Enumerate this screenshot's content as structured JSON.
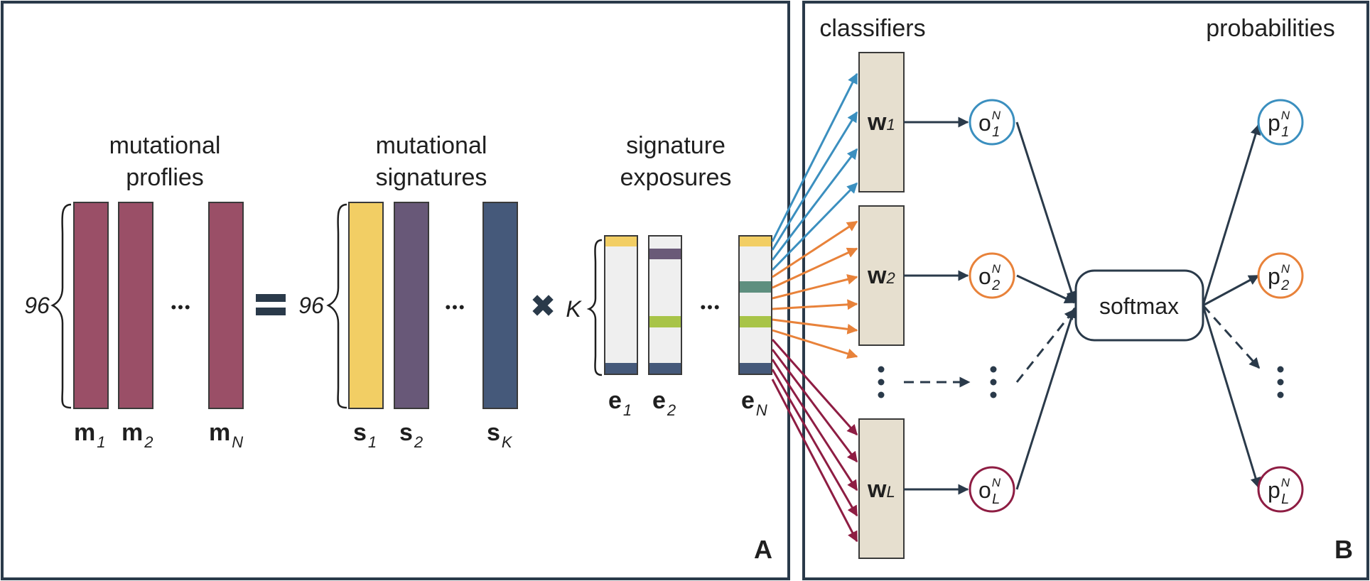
{
  "colors": {
    "frame": "#2a3a4a",
    "profile": "#9a4f67",
    "sig1": "#f2ce64",
    "sig2": "#685878",
    "sigK": "#45597a",
    "exposure_bg": "#efefef",
    "exposure_top": "#f2ce64",
    "exposure_bottom": "#45597a",
    "exposure_purple": "#6a5a78",
    "exposure_green": "#a8c448",
    "exposure_teal": "#5e8f7f",
    "classifier_fill": "#e6dfcf",
    "blue": "#3b8fbf",
    "orange": "#e8823a",
    "crimson": "#8e1d43"
  },
  "panel_a": {
    "letter": "A",
    "title_profiles": [
      "mutational",
      "proflies"
    ],
    "title_signatures": [
      "mutational",
      "signatures"
    ],
    "title_exposures": [
      "signature",
      "exposures"
    ],
    "brace_profiles": "96",
    "brace_signatures": "96",
    "brace_exposures": "K",
    "equals": "=",
    "times": "✖",
    "ellipsis": "•••",
    "profile_labels": [
      {
        "base": "m",
        "sub": "1"
      },
      {
        "base": "m",
        "sub": "2"
      },
      {
        "base": "m",
        "sub": "N"
      }
    ],
    "signature_labels": [
      {
        "base": "s",
        "sub": "1"
      },
      {
        "base": "s",
        "sub": "2"
      },
      {
        "base": "s",
        "sub": "K"
      }
    ],
    "exposure_labels": [
      {
        "base": "e",
        "sub": "1"
      },
      {
        "base": "e",
        "sub": "2"
      },
      {
        "base": "e",
        "sub": "N"
      }
    ]
  },
  "panel_b": {
    "letter": "B",
    "title_classifiers": "classifiers",
    "title_probabilities": "probabilities",
    "classifiers": [
      {
        "base": "w",
        "sub": "1"
      },
      {
        "base": "w",
        "sub": "2"
      },
      {
        "base": "w",
        "sub": "L"
      }
    ],
    "outputs": [
      {
        "base": "o",
        "sup": "N",
        "sub": "1"
      },
      {
        "base": "o",
        "sup": "N",
        "sub": "2"
      },
      {
        "base": "o",
        "sup": "N",
        "sub": "L"
      }
    ],
    "probs": [
      {
        "base": "p",
        "sup": "N",
        "sub": "1"
      },
      {
        "base": "p",
        "sup": "N",
        "sub": "2"
      },
      {
        "base": "p",
        "sup": "N",
        "sub": "L"
      }
    ],
    "softmax": "softmax"
  }
}
